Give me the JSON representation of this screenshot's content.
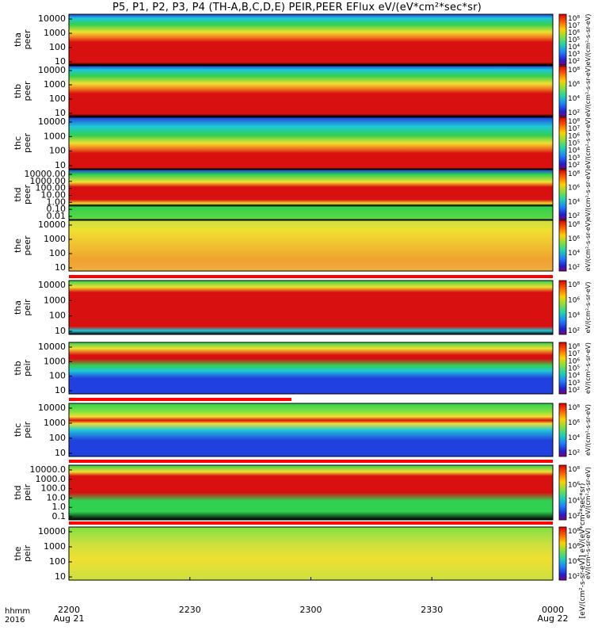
{
  "title": "P5, P1, P2, P3, P4 (TH-A,B,C,D,E) PEIR,PEER EFlux eV/(eV*cm²*sec*sr)",
  "x_axis": {
    "label_line1": "hhmm",
    "label_line2": "2016",
    "ticks": [
      {
        "time": "2200",
        "date": "Aug 21"
      },
      {
        "time": "2230",
        "date": ""
      },
      {
        "time": "2300",
        "date": ""
      },
      {
        "time": "2330",
        "date": ""
      },
      {
        "time": "0000",
        "date": "Aug 22"
      }
    ]
  },
  "colorbar_label": "eV/(cm²-s-sr-eV)",
  "colorbar_label_combined": "[eV/(cm²-s-sr-eV)] eV/(eV*cm²*sec*sr)",
  "colors": {
    "red": "#d81010",
    "orange": "#f08020",
    "yellow": "#f0e030",
    "green": "#30d050",
    "cyan": "#20c8d8",
    "blue": "#2040e0",
    "black": "#000000",
    "flag_bar": "#ff0000"
  },
  "chart_data": {
    "type": "heatmap",
    "x_range": [
      "2016-08-21 22:00",
      "2016-08-22 00:00"
    ],
    "panels": [
      {
        "id": "tha-peer",
        "probe": "tha",
        "species": "peer",
        "yticks": [
          "10000",
          "1000",
          "100",
          "10"
        ],
        "colorbar_ticks": [
          "10⁸",
          "10⁷",
          "10⁶",
          "10⁵",
          "10⁴",
          "10³",
          "10²"
        ],
        "flag_bar_fraction": 0
      },
      {
        "id": "thb-peer",
        "probe": "thb",
        "species": "peer",
        "yticks": [
          "10000",
          "1000",
          "100",
          "10"
        ],
        "colorbar_ticks": [
          "10⁸",
          "10⁶",
          "10⁴",
          "10²"
        ],
        "flag_bar_fraction": 0
      },
      {
        "id": "thc-peer",
        "probe": "thc",
        "species": "peer",
        "yticks": [
          "10000",
          "1000",
          "100",
          "10"
        ],
        "colorbar_ticks": [
          "10⁸",
          "10⁷",
          "10⁶",
          "10⁵",
          "10⁴",
          "10³",
          "10²"
        ],
        "flag_bar_fraction": 0
      },
      {
        "id": "thd-peer",
        "probe": "thd",
        "species": "peer",
        "yticks": [
          "10000.00",
          "1000.00",
          "100.00",
          "10.00",
          "1.00",
          "0.10",
          "0.01"
        ],
        "colorbar_ticks": [
          "10⁸",
          "10⁶",
          "10⁴",
          "10²"
        ],
        "flag_bar_fraction": 0
      },
      {
        "id": "the-peer",
        "probe": "the",
        "species": "peer",
        "yticks": [
          "10000",
          "1000",
          "100",
          "10"
        ],
        "colorbar_ticks": [
          "10⁸",
          "10⁶",
          "10⁴",
          "10²"
        ],
        "flag_bar_fraction": 0
      },
      {
        "id": "tha-peir",
        "probe": "tha",
        "species": "peir",
        "yticks": [
          "10000",
          "1000",
          "100",
          "10"
        ],
        "colorbar_ticks": [
          "10⁸",
          "10⁶",
          "10⁴",
          "10²"
        ],
        "flag_bar_fraction": 1.0
      },
      {
        "id": "thb-peir",
        "probe": "thb",
        "species": "peir",
        "yticks": [
          "10000",
          "1000",
          "100",
          "10"
        ],
        "colorbar_ticks": [
          "10⁸",
          "10⁷",
          "10⁶",
          "10⁵",
          "10⁴",
          "10³",
          "10²"
        ],
        "flag_bar_fraction": 0
      },
      {
        "id": "thc-peir",
        "probe": "thc",
        "species": "peir",
        "yticks": [
          "10000",
          "1000",
          "100",
          "10"
        ],
        "colorbar_ticks": [
          "10⁸",
          "10⁶",
          "10⁴",
          "10²"
        ],
        "flag_bar_fraction": 0.46
      },
      {
        "id": "thd-peir",
        "probe": "thd",
        "species": "peir",
        "yticks": [
          "10000.0",
          "1000.0",
          "100.0",
          "10.0",
          "1.0",
          "0.1"
        ],
        "colorbar_ticks": [
          "10⁸",
          "10⁶",
          "10⁴",
          "10²"
        ],
        "flag_bar_fraction": 1.0
      },
      {
        "id": "the-peir",
        "probe": "the",
        "species": "peir",
        "yticks": [
          "10000",
          "1000",
          "100",
          "10"
        ],
        "colorbar_ticks": [
          "10⁸",
          "10⁶",
          "10⁴",
          "10²"
        ],
        "flag_bar_fraction": 1.0
      }
    ]
  }
}
